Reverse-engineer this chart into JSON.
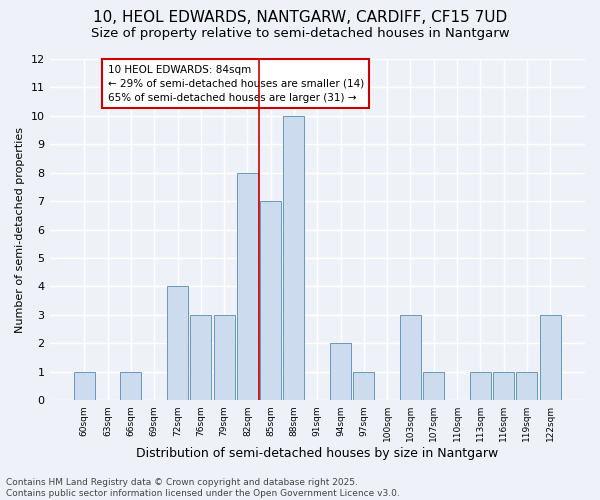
{
  "title": "10, HEOL EDWARDS, NANTGARW, CARDIFF, CF15 7UD",
  "subtitle": "Size of property relative to semi-detached houses in Nantgarw",
  "xlabel": "Distribution of semi-detached houses by size in Nantgarw",
  "ylabel": "Number of semi-detached properties",
  "categories": [
    "60sqm",
    "63sqm",
    "66sqm",
    "69sqm",
    "72sqm",
    "76sqm",
    "79sqm",
    "82sqm",
    "85sqm",
    "88sqm",
    "91sqm",
    "94sqm",
    "97sqm",
    "100sqm",
    "103sqm",
    "107sqm",
    "110sqm",
    "113sqm",
    "116sqm",
    "119sqm",
    "122sqm"
  ],
  "values": [
    1,
    0,
    1,
    0,
    4,
    3,
    3,
    8,
    7,
    10,
    0,
    2,
    1,
    0,
    3,
    1,
    0,
    1,
    1,
    1,
    3
  ],
  "bar_color": "#ccdcee",
  "bar_edge_color": "#6699bb",
  "vline_x": 8.0,
  "annotation_text": "10 HEOL EDWARDS: 84sqm\n← 29% of semi-detached houses are smaller (14)\n65% of semi-detached houses are larger (31) →",
  "annotation_box_color": "#ffffff",
  "annotation_box_edge_color": "#cc0000",
  "vline_color": "#cc0000",
  "ylim": [
    0,
    12
  ],
  "yticks": [
    0,
    1,
    2,
    3,
    4,
    5,
    6,
    7,
    8,
    9,
    10,
    11,
    12
  ],
  "footnote": "Contains HM Land Registry data © Crown copyright and database right 2025.\nContains public sector information licensed under the Open Government Licence v3.0.",
  "bg_color": "#eef2f8",
  "grid_color": "#ffffff",
  "title_fontsize": 11,
  "subtitle_fontsize": 9.5,
  "xlabel_fontsize": 9,
  "ylabel_fontsize": 8,
  "footnote_fontsize": 6.5,
  "annot_fontsize": 7.5
}
